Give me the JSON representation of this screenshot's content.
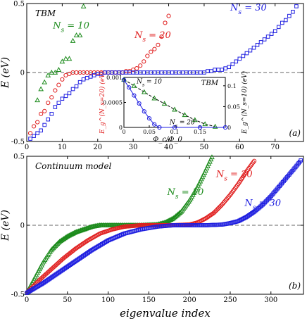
{
  "chart_data": [
    {
      "type": "scatter",
      "panel_label": "(a)",
      "annotation": "TBM",
      "ylabel": "E (eV)",
      "xlim": [
        0,
        78
      ],
      "ylim": [
        -0.5,
        0.5
      ],
      "xticks": [
        0,
        10,
        20,
        30,
        40,
        50,
        60,
        70
      ],
      "yticks": [
        -0.5,
        0,
        0.5
      ],
      "xtick_labels": [
        "0",
        "10",
        "20",
        "30",
        "40",
        "50",
        "60",
        "70"
      ],
      "ytick_labels": [
        "-0.5",
        "0",
        "0.5"
      ],
      "zero_line": true,
      "series": [
        {
          "name": "N_s = 10",
          "color": "#1a8a1a",
          "marker": "triangle",
          "x": [
            3,
            4,
            5,
            6,
            7,
            8,
            9,
            10,
            11,
            12,
            13,
            14,
            15,
            16
          ],
          "y": [
            -0.2,
            -0.12,
            -0.07,
            -0.02,
            0.0,
            0.0,
            0.02,
            0.08,
            0.1,
            0.1,
            0.23,
            0.27,
            0.27,
            0.48
          ]
        },
        {
          "name": "N_s = 20",
          "color": "#e02020",
          "marker": "circle",
          "x": [
            1,
            2,
            3,
            4,
            5,
            6,
            7,
            8,
            9,
            10,
            11,
            12,
            13,
            14,
            15,
            16,
            17,
            18,
            19,
            20,
            21,
            22,
            23,
            24,
            25,
            26,
            27,
            28,
            29,
            30,
            31,
            32,
            33,
            34,
            35,
            36,
            37,
            38,
            39,
            40
          ],
          "y": [
            -0.44,
            -0.39,
            -0.36,
            -0.3,
            -0.28,
            -0.22,
            -0.18,
            -0.13,
            -0.09,
            -0.05,
            -0.02,
            -0.01,
            0.0,
            0.0,
            0.0,
            0.0,
            0.0,
            0.0,
            0.0,
            0.0,
            0.0,
            0.0,
            0.0,
            0.0,
            0.0,
            0.0,
            0.0,
            0.01,
            0.01,
            0.02,
            0.03,
            0.05,
            0.08,
            0.12,
            0.15,
            0.17,
            0.2,
            0.26,
            0.36,
            0.41
          ]
        },
        {
          "name": "N_s = 30",
          "color": "#1f1fe0",
          "marker": "square",
          "x": [
            1,
            2,
            3,
            4,
            5,
            6,
            7,
            8,
            9,
            10,
            11,
            12,
            13,
            14,
            15,
            16,
            17,
            18,
            19,
            20,
            21,
            22,
            23,
            24,
            25,
            26,
            27,
            28,
            29,
            30,
            31,
            32,
            33,
            34,
            35,
            36,
            37,
            38,
            39,
            40,
            41,
            42,
            43,
            44,
            45,
            46,
            47,
            48,
            49,
            50,
            51,
            52,
            53,
            54,
            55,
            56,
            57,
            58,
            59,
            60,
            61,
            62,
            63,
            64,
            65,
            66,
            67,
            68,
            69,
            70,
            71,
            72,
            73,
            74,
            75,
            76
          ],
          "y": [
            -0.48,
            -0.46,
            -0.44,
            -0.42,
            -0.38,
            -0.34,
            -0.3,
            -0.25,
            -0.22,
            -0.19,
            -0.17,
            -0.15,
            -0.12,
            -0.1,
            -0.07,
            -0.05,
            -0.04,
            -0.03,
            -0.02,
            -0.01,
            -0.01,
            0.0,
            0.0,
            0.0,
            0.0,
            0.0,
            0.0,
            0.0,
            0.0,
            0.0,
            0.0,
            0.0,
            0.0,
            0.0,
            0.0,
            0.0,
            0.0,
            0.0,
            0.0,
            0.0,
            0.0,
            0.0,
            0.0,
            0.0,
            0.0,
            0.0,
            0.0,
            0.0,
            0.0,
            0.0,
            0.01,
            0.01,
            0.02,
            0.02,
            0.02,
            0.03,
            0.04,
            0.06,
            0.08,
            0.1,
            0.12,
            0.14,
            0.16,
            0.18,
            0.2,
            0.22,
            0.24,
            0.26,
            0.28,
            0.3,
            0.33,
            0.36,
            0.38,
            0.41,
            0.44,
            0.48
          ]
        }
      ],
      "labels": [
        {
          "text": "N_s = 10",
          "color": "#1a8a1a",
          "x": 12.5,
          "y": 0.32
        },
        {
          "text": "N_s = 20",
          "color": "#e02020",
          "x": 35.5,
          "y": 0.25
        },
        {
          "text": "N_s = 30",
          "color": "#1f1fe0",
          "x": 62.5,
          "y": 0.45
        }
      ]
    },
    {
      "type": "line",
      "inset": true,
      "annotation": "TBM",
      "xlabel": "Φ_c/Φ_0",
      "ylabel_left": "E_g^(N_s=20) (eV)",
      "ylabel_right": "E_g^(N_s=10) (eV)",
      "xlim": [
        0,
        0.2
      ],
      "ylim_left": [
        0,
        0.001
      ],
      "ylim_right": [
        0,
        0.12
      ],
      "xtick_labels": [
        "0",
        "0.05",
        "0.1",
        "0.15"
      ],
      "ytick_left_labels": [
        "0",
        "0.0005",
        "0.001"
      ],
      "ytick_right_labels": [
        "0",
        "0.05",
        "0.1"
      ],
      "series": [
        {
          "name": "N_s = 10",
          "color": "#1a8a1a",
          "axis": "right",
          "x": [
            0.0,
            0.02,
            0.04,
            0.06,
            0.08,
            0.1,
            0.12,
            0.14,
            0.16,
            0.18
          ],
          "y": [
            0.115,
            0.1,
            0.085,
            0.07,
            0.057,
            0.043,
            0.03,
            0.018,
            0.008,
            0.002
          ]
        },
        {
          "name": "N_s = 20",
          "color": "#1f1fe0",
          "axis": "left",
          "x": [
            0.0,
            0.01,
            0.02,
            0.03,
            0.04,
            0.05,
            0.06,
            0.07,
            0.1,
            0.15,
            0.2
          ],
          "y": [
            0.00095,
            0.0008,
            0.00064,
            0.00048,
            0.00032,
            0.00018,
            6e-05,
            0.0,
            0.0,
            0.0,
            0.0
          ]
        }
      ],
      "labels": [
        {
          "text": "N_s = 10",
          "color": "#000000",
          "axis": "left",
          "x": 0.05,
          "y": 0.00088
        },
        {
          "text": "N_s = 20",
          "color": "#000000",
          "axis": "left",
          "x": 0.115,
          "y": 6e-05
        }
      ]
    },
    {
      "type": "scatter",
      "panel_label": "(b)",
      "annotation": "Continuum model",
      "xlabel": "eigenvalue index",
      "ylabel": "E (eV)",
      "xlim": [
        0,
        340
      ],
      "ylim": [
        -0.5,
        0.5
      ],
      "xticks": [
        0,
        50,
        100,
        150,
        200,
        250,
        300
      ],
      "yticks": [
        -0.5,
        0,
        0.5
      ],
      "xtick_labels": [
        "0",
        "50",
        "100",
        "150",
        "200",
        "250",
        "300"
      ],
      "ytick_labels": [
        "-0.5",
        "0",
        "0.5"
      ],
      "zero_line": true,
      "series": [
        {
          "name": "N_s = 10",
          "color": "#1a8a1a",
          "marker": "triangle",
          "curve_x": [
            0,
            10,
            20,
            30,
            40,
            50,
            60,
            70,
            80,
            90,
            100,
            120,
            140,
            160,
            170,
            180,
            190,
            200,
            210,
            220,
            228
          ],
          "curve_y": [
            -0.49,
            -0.38,
            -0.27,
            -0.18,
            -0.12,
            -0.08,
            -0.05,
            -0.03,
            -0.01,
            0.0,
            0.0,
            0.0,
            0.0,
            0.005,
            0.02,
            0.05,
            0.1,
            0.18,
            0.28,
            0.4,
            0.5
          ]
        },
        {
          "name": "N_s = 20",
          "color": "#e02020",
          "marker": "circle",
          "curve_x": [
            0,
            15,
            30,
            45,
            60,
            75,
            90,
            105,
            120,
            140,
            160,
            180,
            200,
            210,
            220,
            230,
            240,
            250,
            260,
            270,
            280
          ],
          "curve_y": [
            -0.49,
            -0.4,
            -0.32,
            -0.24,
            -0.17,
            -0.11,
            -0.06,
            -0.03,
            -0.01,
            0.0,
            0.0,
            0.0,
            0.005,
            0.02,
            0.05,
            0.09,
            0.15,
            0.22,
            0.3,
            0.39,
            0.47
          ]
        },
        {
          "name": "N_s = 30",
          "color": "#1f1fe0",
          "marker": "square",
          "curve_x": [
            0,
            20,
            40,
            60,
            80,
            100,
            120,
            140,
            160,
            180,
            200,
            220,
            240,
            250,
            260,
            270,
            280,
            290,
            300,
            310,
            320,
            330,
            338
          ],
          "curve_y": [
            -0.49,
            -0.42,
            -0.34,
            -0.26,
            -0.18,
            -0.11,
            -0.06,
            -0.03,
            -0.01,
            0.0,
            0.0,
            0.0,
            0.005,
            0.015,
            0.03,
            0.06,
            0.1,
            0.15,
            0.21,
            0.28,
            0.35,
            0.42,
            0.48
          ]
        }
      ],
      "labels": [
        {
          "text": "N_s = 10",
          "color": "#1a8a1a",
          "x": 195,
          "y": 0.22
        },
        {
          "text": "N_s = 20",
          "color": "#e02020",
          "x": 255,
          "y": 0.35
        },
        {
          "text": "N_s = 30",
          "color": "#1f1fe0",
          "x": 290,
          "y": 0.14
        }
      ]
    }
  ]
}
